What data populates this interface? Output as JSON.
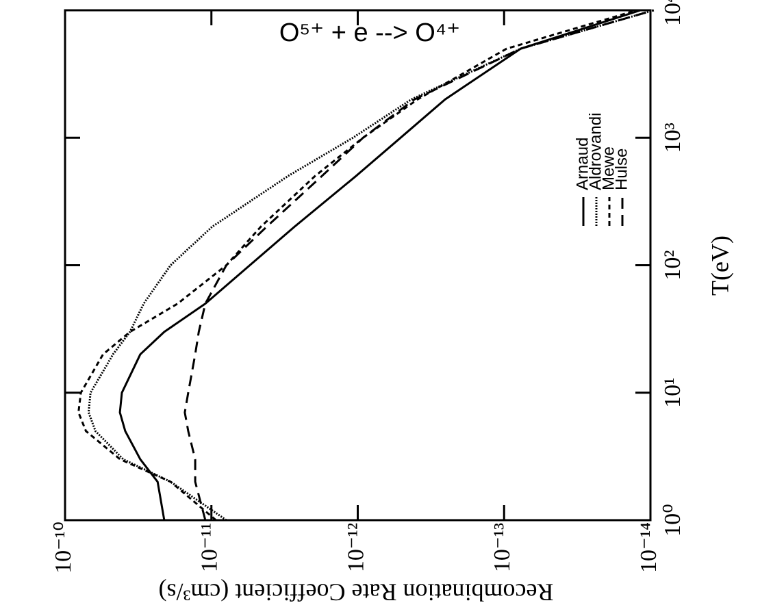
{
  "chart_data": {
    "type": "line",
    "title": "O⁵⁺ + e --> O⁴⁺",
    "x_label": "T(eV)",
    "y_label": "Recombination Rate Coefficient (cm³/s)",
    "x_log": true,
    "y_log": true,
    "xlim": [
      1,
      10000
    ],
    "xticks": [
      {
        "value": 1,
        "label": "10⁰"
      },
      {
        "value": 10,
        "label": "10¹"
      },
      {
        "value": 100,
        "label": "10²"
      },
      {
        "value": 1000,
        "label": "10³"
      },
      {
        "value": 10000,
        "label": "10⁴"
      }
    ],
    "ylim": [
      1e-14,
      1e-10
    ],
    "yticks": [
      {
        "value": 1e-10,
        "label": "10⁻¹⁰"
      },
      {
        "value": 1e-11,
        "label": "10⁻¹¹"
      },
      {
        "value": 1e-12,
        "label": "10⁻¹²"
      },
      {
        "value": 1e-13,
        "label": "10⁻¹³"
      },
      {
        "value": 1e-14,
        "label": "10⁻¹⁴"
      }
    ],
    "x": [
      1,
      2,
      3,
      5,
      7,
      10,
      20,
      30,
      50,
      100,
      200,
      500,
      1000,
      2000,
      5000,
      10000
    ],
    "series": [
      {
        "name": "Arnaud",
        "color": "#000000",
        "dash": "none",
        "values": [
          2.1e-11,
          2.33e-11,
          3.06e-11,
          3.88e-11,
          4.22e-11,
          4.09e-11,
          3.06e-11,
          2.1e-11,
          1.1e-11,
          5.46e-12,
          2.71e-12,
          1.03e-12,
          5.1e-13,
          2.53e-13,
          7.7e-14,
          1.17e-14
        ]
      },
      {
        "name": "Aldrovandi",
        "color": "#000000",
        "dash": "2,2",
        "values": [
          7.9e-12,
          1.9e-11,
          4e-11,
          6.2e-11,
          6.9e-11,
          6.7e-11,
          4.7e-11,
          3.6e-11,
          2.9e-11,
          1.9e-11,
          9.9e-12,
          3e-12,
          1.08e-12,
          4.3e-13,
          7.7e-14,
          9.5e-15
        ]
      },
      {
        "name": "Mewe",
        "color": "#000000",
        "dash": "7,5",
        "values": [
          9.3e-12,
          1.9e-11,
          4.2e-11,
          7.2e-11,
          8.1e-11,
          7.8e-11,
          5.5e-11,
          3.6e-11,
          1.7e-11,
          7.9e-12,
          4.6e-12,
          1.96e-12,
          9.2e-13,
          3.9e-13,
          9.6e-14,
          1.24e-14
        ]
      },
      {
        "name": "Hulse",
        "color": "#000000",
        "dash": "16,9",
        "values": [
          1.1e-11,
          1.29e-11,
          1.29e-11,
          1.44e-11,
          1.52e-11,
          1.44e-11,
          1.29e-11,
          1.22e-11,
          1.1e-11,
          7.9e-12,
          4.2e-12,
          1.76e-12,
          9.2e-13,
          4.1e-13,
          7.7e-14,
          9.5e-15
        ]
      }
    ]
  }
}
